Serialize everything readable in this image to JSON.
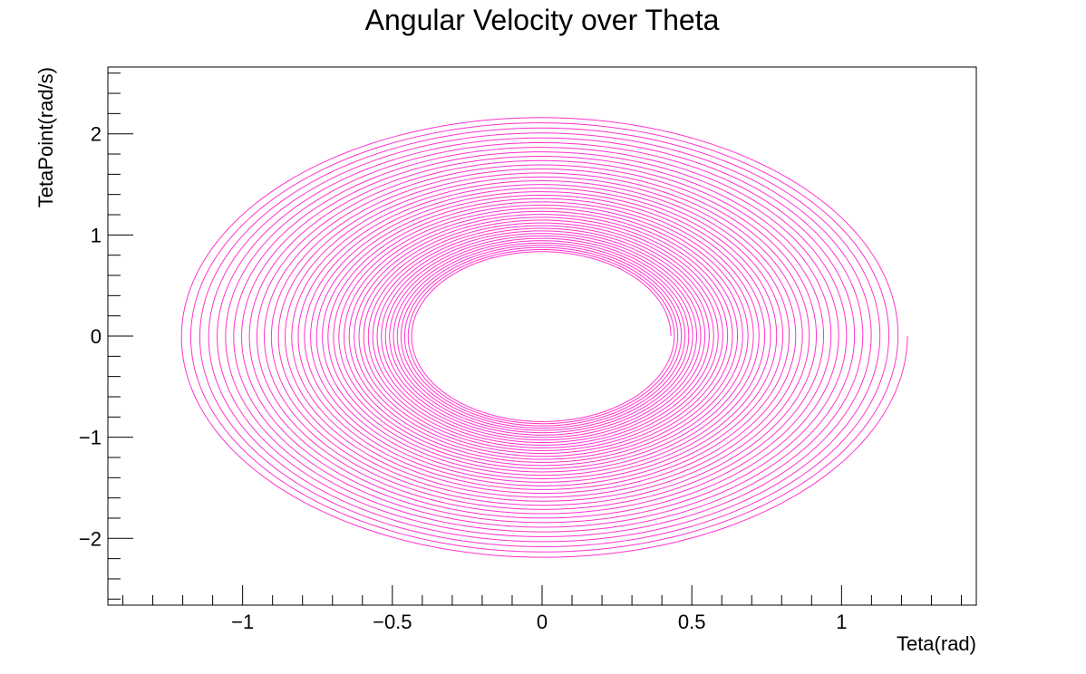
{
  "chart_data": {
    "type": "line",
    "title": "Angular Velocity over Theta",
    "xlabel": "Teta(rad)",
    "ylabel": "TetaPoint(rad/s)",
    "xlim": [
      -1.45,
      1.45
    ],
    "ylim": [
      -2.66,
      2.66
    ],
    "grid": false,
    "legend": "none",
    "x_ticks": [
      {
        "value": -1,
        "label": "−1"
      },
      {
        "value": -0.5,
        "label": "−0.5"
      },
      {
        "value": 0,
        "label": "0"
      },
      {
        "value": 0.5,
        "label": "0.5"
      },
      {
        "value": 1,
        "label": "1"
      }
    ],
    "y_ticks": [
      {
        "value": -2,
        "label": "−2"
      },
      {
        "value": -1,
        "label": "−1"
      },
      {
        "value": 0,
        "label": "0"
      },
      {
        "value": 1,
        "label": "1"
      },
      {
        "value": 2,
        "label": "2"
      }
    ],
    "series": [
      {
        "color": "#ff33cc",
        "shape": "decaying spiral",
        "start": {
          "x": 1.22,
          "y": 0.0
        },
        "outer_amplitude": {
          "x": 1.22,
          "y": 2.2
        },
        "inner_amplitude": {
          "x": 0.43,
          "y": 0.83
        },
        "turns": 40
      }
    ]
  }
}
